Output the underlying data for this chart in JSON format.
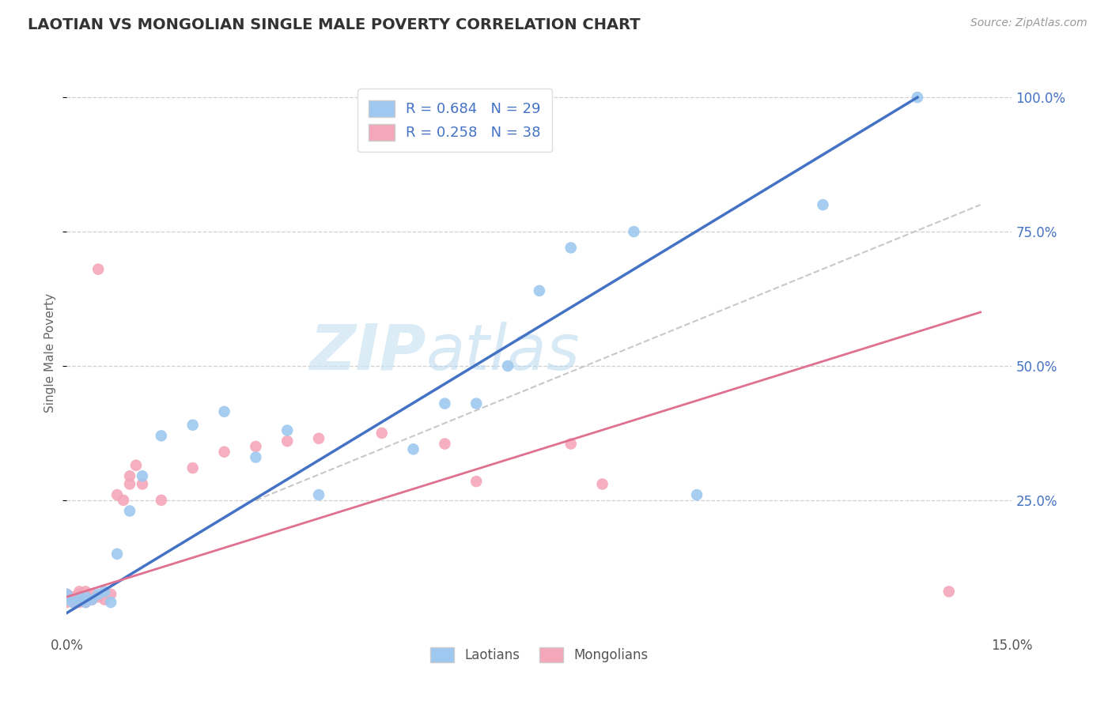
{
  "title": "LAOTIAN VS MONGOLIAN SINGLE MALE POVERTY CORRELATION CHART",
  "source_text": "Source: ZipAtlas.com",
  "ylabel": "Single Male Poverty",
  "xlim": [
    0.0,
    0.15
  ],
  "ylim": [
    0.0,
    1.05
  ],
  "ytick_positions": [
    0.25,
    0.5,
    0.75,
    1.0
  ],
  "ytick_labels": [
    "25.0%",
    "50.0%",
    "75.0%",
    "100.0%"
  ],
  "xtick_positions": [
    0.0,
    0.15
  ],
  "xtick_labels": [
    "0.0%",
    "15.0%"
  ],
  "laotian_color": "#9ec8ef",
  "mongolian_color": "#f4a7b9",
  "laotian_R": 0.684,
  "laotian_N": 29,
  "mongolian_R": 0.258,
  "mongolian_N": 38,
  "laotian_scatter_x": [
    0.0,
    0.0,
    0.001,
    0.002,
    0.003,
    0.003,
    0.004,
    0.005,
    0.006,
    0.007,
    0.008,
    0.01,
    0.012,
    0.015,
    0.02,
    0.025,
    0.03,
    0.035,
    0.04,
    0.055,
    0.06,
    0.065,
    0.07,
    0.075,
    0.08,
    0.09,
    0.1,
    0.12,
    0.135
  ],
  "laotian_scatter_y": [
    0.065,
    0.075,
    0.06,
    0.065,
    0.07,
    0.06,
    0.065,
    0.075,
    0.08,
    0.06,
    0.15,
    0.23,
    0.295,
    0.37,
    0.39,
    0.415,
    0.33,
    0.38,
    0.26,
    0.345,
    0.43,
    0.43,
    0.5,
    0.64,
    0.72,
    0.75,
    0.26,
    0.8,
    1.0
  ],
  "mongolian_scatter_x": [
    0.0,
    0.0,
    0.0,
    0.0,
    0.001,
    0.001,
    0.001,
    0.002,
    0.002,
    0.002,
    0.002,
    0.003,
    0.003,
    0.003,
    0.004,
    0.004,
    0.005,
    0.005,
    0.006,
    0.007,
    0.008,
    0.009,
    0.01,
    0.01,
    0.011,
    0.012,
    0.015,
    0.02,
    0.025,
    0.03,
    0.035,
    0.04,
    0.05,
    0.06,
    0.065,
    0.08,
    0.085,
    0.14
  ],
  "mongolian_scatter_y": [
    0.06,
    0.065,
    0.07,
    0.075,
    0.06,
    0.065,
    0.07,
    0.06,
    0.065,
    0.075,
    0.08,
    0.06,
    0.065,
    0.08,
    0.065,
    0.075,
    0.68,
    0.07,
    0.065,
    0.075,
    0.26,
    0.25,
    0.28,
    0.295,
    0.315,
    0.28,
    0.25,
    0.31,
    0.34,
    0.35,
    0.36,
    0.365,
    0.375,
    0.355,
    0.285,
    0.355,
    0.28,
    0.08
  ],
  "background_color": "#ffffff",
  "watermark_left": "ZIP",
  "watermark_right": "atlas",
  "trend_laotian_color": "#4472c4",
  "trend_mongolian_color": "#e07090",
  "trend_laotian_x0": 0.0,
  "trend_laotian_y0": 0.04,
  "trend_laotian_x1": 0.135,
  "trend_laotian_y1": 1.0,
  "trend_mongolian_x0": 0.0,
  "trend_mongolian_y0": 0.07,
  "trend_mongolian_x1": 0.145,
  "trend_mongolian_y1": 0.6,
  "trend_dashed_color": "#c8c8c8",
  "trend_dashed_x0": 0.03,
  "trend_dashed_y0": 0.25,
  "trend_dashed_x1": 0.145,
  "trend_dashed_y1": 0.8,
  "legend_text_color": "#4472c4",
  "axis_tick_color": "#4472c4",
  "grid_color": "#d0d0d0",
  "title_color": "#333333",
  "source_color": "#999999",
  "ylabel_color": "#666666"
}
